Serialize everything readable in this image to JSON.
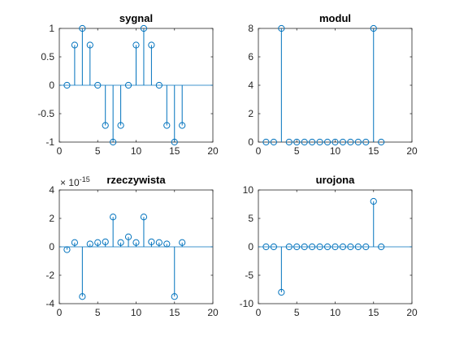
{
  "figure": {
    "background": "#ffffff"
  },
  "style": {
    "stem_color": "#0072bd",
    "axes_color": "#262626"
  },
  "chart_data": [
    {
      "type": "stem",
      "id": "sygnal",
      "title": "sygnal",
      "xlabel": "",
      "ylabel": "",
      "xlim": [
        0,
        20
      ],
      "ylim": [
        -1,
        1
      ],
      "xticks": [
        0,
        5,
        10,
        15,
        20
      ],
      "yticks": [
        -1,
        -0.5,
        0,
        0.5,
        1
      ],
      "ytick_labels": [
        "-1",
        "-0.5",
        "0",
        "0.5",
        "1"
      ],
      "exponent_label": "",
      "x": [
        1,
        2,
        3,
        4,
        5,
        6,
        7,
        8,
        9,
        10,
        11,
        12,
        13,
        14,
        15,
        16
      ],
      "y": [
        0,
        0.7071,
        1,
        0.7071,
        0,
        -0.7071,
        -1,
        -0.7071,
        0,
        0.7071,
        1,
        0.7071,
        0,
        -0.7071,
        -1,
        -0.7071
      ]
    },
    {
      "type": "stem",
      "id": "modul",
      "title": "modul",
      "xlabel": "",
      "ylabel": "",
      "xlim": [
        0,
        20
      ],
      "ylim": [
        0,
        8
      ],
      "xticks": [
        0,
        5,
        10,
        15,
        20
      ],
      "yticks": [
        0,
        2,
        4,
        6,
        8
      ],
      "ytick_labels": [
        "0",
        "2",
        "4",
        "6",
        "8"
      ],
      "exponent_label": "",
      "x": [
        1,
        2,
        3,
        4,
        5,
        6,
        7,
        8,
        9,
        10,
        11,
        12,
        13,
        14,
        15,
        16
      ],
      "y": [
        0,
        0,
        8,
        0,
        0,
        0,
        0,
        0,
        0,
        0,
        0,
        0,
        0,
        0,
        8,
        0
      ]
    },
    {
      "type": "stem",
      "id": "rzeczywista",
      "title": "rzeczywista",
      "xlabel": "",
      "ylabel": "",
      "xlim": [
        0,
        20
      ],
      "ylim": [
        -4,
        4
      ],
      "xticks": [
        0,
        5,
        10,
        15,
        20
      ],
      "yticks": [
        -4,
        -2,
        0,
        2,
        4
      ],
      "ytick_labels": [
        "-4",
        "-2",
        "0",
        "2",
        "4"
      ],
      "exponent_label": "× 10",
      "exponent_power": "-15",
      "x": [
        1,
        2,
        3,
        4,
        5,
        6,
        7,
        8,
        9,
        10,
        11,
        12,
        13,
        14,
        15,
        16
      ],
      "y": [
        -0.2,
        0.3,
        -3.5,
        0.2,
        0.3,
        0.35,
        2.1,
        0.3,
        0.7,
        0.3,
        2.1,
        0.35,
        0.3,
        0.2,
        -3.5,
        0.3
      ]
    },
    {
      "type": "stem",
      "id": "urojona",
      "title": "urojona",
      "xlabel": "",
      "ylabel": "",
      "xlim": [
        0,
        20
      ],
      "ylim": [
        -10,
        10
      ],
      "xticks": [
        0,
        5,
        10,
        15,
        20
      ],
      "yticks": [
        -10,
        -5,
        0,
        5,
        10
      ],
      "ytick_labels": [
        "-10",
        "-5",
        "0",
        "5",
        "10"
      ],
      "exponent_label": "",
      "x": [
        1,
        2,
        3,
        4,
        5,
        6,
        7,
        8,
        9,
        10,
        11,
        12,
        13,
        14,
        15,
        16
      ],
      "y": [
        0,
        0,
        -8,
        0,
        0,
        0,
        0,
        0,
        0,
        0,
        0,
        0,
        0,
        0,
        8,
        0
      ]
    }
  ]
}
